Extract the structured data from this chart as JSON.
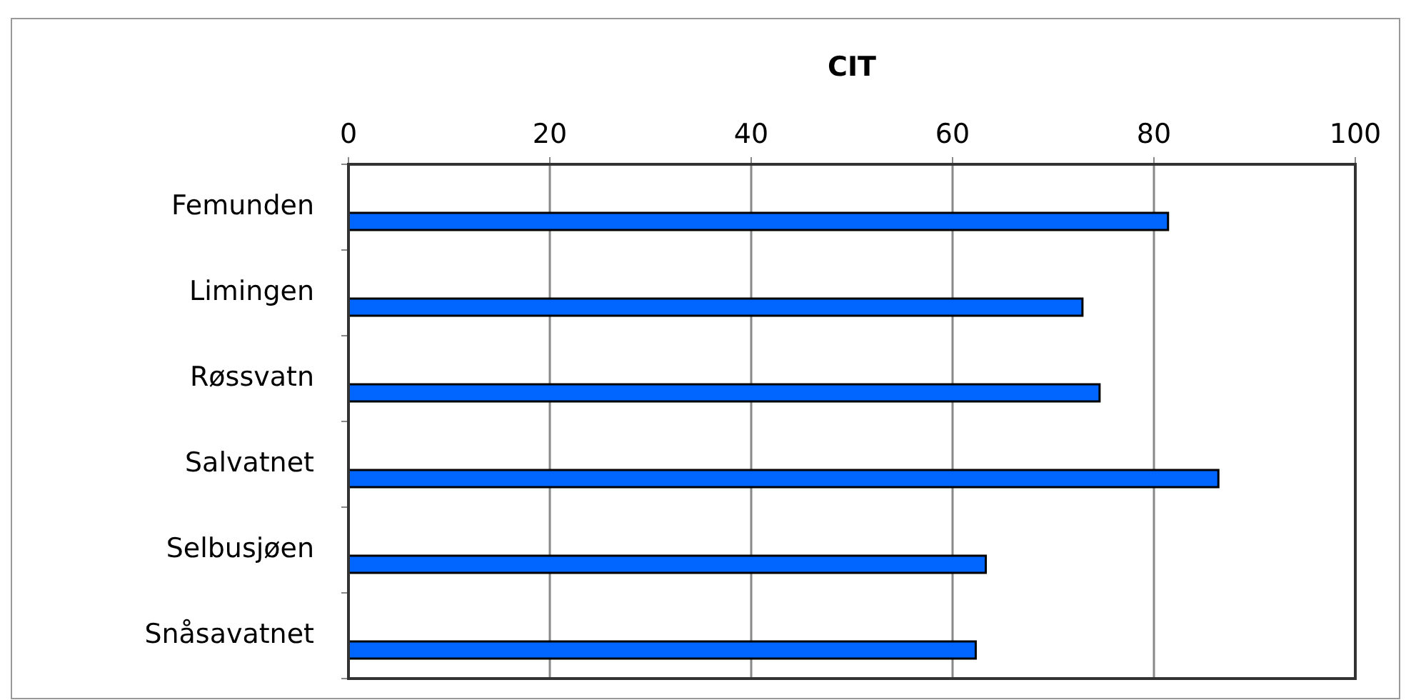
{
  "chart_data": {
    "type": "bar",
    "orientation": "horizontal",
    "xlabel": "CIT",
    "categories": [
      "Femunden",
      "Limingen",
      "Røssvatn",
      "Salvatnet",
      "Selbusjøen",
      "Snåsavatnet"
    ],
    "values": [
      81.4,
      72.9,
      74.6,
      86.4,
      63.3,
      62.3
    ],
    "color": "#0066ff",
    "xlim": [
      0,
      100
    ],
    "xticks": [
      0,
      20,
      40,
      60,
      80,
      100
    ],
    "grid": "x"
  }
}
